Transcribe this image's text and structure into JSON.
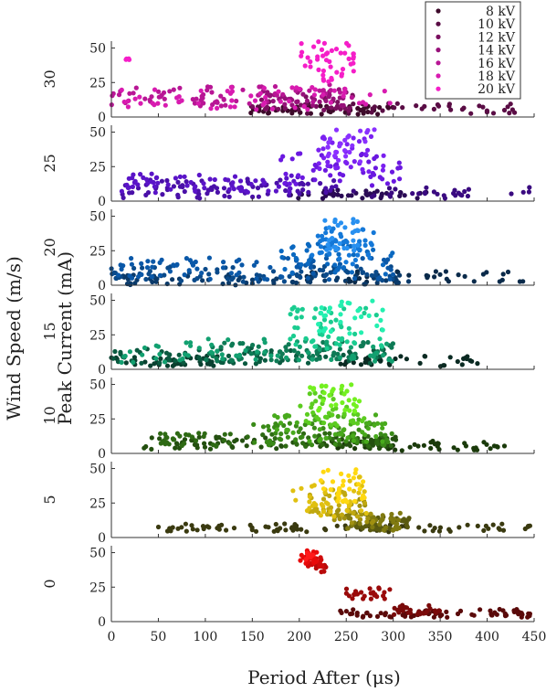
{
  "chart_data": {
    "type": "scatter",
    "xlabel": "Period After (μs)",
    "ylabel_outer": "Wind Speed (m/s)",
    "ylabel_inner": "Peak Current (mA)",
    "xlim": [
      0,
      450
    ],
    "ylim": [
      0,
      55
    ],
    "x_ticks": [
      "0",
      "50",
      "100",
      "150",
      "200",
      "250",
      "300",
      "350",
      "400",
      "450"
    ],
    "y_ticks": [
      "0",
      "25",
      "50"
    ],
    "legend_position": "top-right",
    "legend": [
      {
        "label": "8 kV"
      },
      {
        "label": "10 kV"
      },
      {
        "label": "12 kV"
      },
      {
        "label": "14 kV"
      },
      {
        "label": "16 kV"
      },
      {
        "label": "18 kV"
      },
      {
        "label": "20 kV"
      }
    ],
    "panels": [
      {
        "wind_speed": "30",
        "colors": [
          "#3d0a2a",
          "#5a0d45",
          "#7a0f5f",
          "#97117a",
          "#b81695",
          "#d81bb0",
          "#f51ec8"
        ],
        "series": [
          {
            "name": "8 kV",
            "clusters": [
              {
                "x": [
                  140,
                  300
                ],
                "y": [
                  2,
                  8
                ],
                "n": 55
              }
            ]
          },
          {
            "name": "10 kV",
            "clusters": [
              {
                "x": [
                  150,
                  440
                ],
                "y": [
                  2,
                  10
                ],
                "n": 40
              }
            ]
          },
          {
            "name": "12 kV",
            "clusters": [
              {
                "x": [
                  150,
                  260
                ],
                "y": [
                  4,
                  16
                ],
                "n": 35
              }
            ]
          },
          {
            "name": "14 kV",
            "clusters": [
              {
                "x": [
                  160,
                  250
                ],
                "y": [
                  8,
                  20
                ],
                "n": 40
              }
            ]
          },
          {
            "name": "16 kV",
            "clusters": [
              {
                "x": [
                  0,
                  120
                ],
                "y": [
                  8,
                  22
                ],
                "n": 45
              },
              {
                "x": [
                  100,
                  260
                ],
                "y": [
                  8,
                  24
                ],
                "n": 30
              }
            ]
          },
          {
            "name": "18 kV",
            "clusters": [
              {
                "x": [
                  0,
                  300
                ],
                "y": [
                  5,
                  22
                ],
                "n": 60
              }
            ]
          },
          {
            "name": "20 kV",
            "clusters": [
              {
                "x": [
                  200,
                  260
                ],
                "y": [
                  25,
                  55
                ],
                "n": 45
              },
              {
                "x": [
                  15,
                  20
                ],
                "y": [
                  39,
                  43
                ],
                "n": 4
              }
            ]
          }
        ]
      },
      {
        "wind_speed": "25",
        "colors": [
          "#2a0a55",
          "#3a0a80",
          "#4a10a8",
          "#5a14c8",
          "#6a18e0",
          "#7a20f0",
          "#8a30ff"
        ],
        "series": [
          {
            "name": "8 kV",
            "clusters": [
              {
                "x": [
                  190,
                  340
                ],
                "y": [
                  2,
                  8
                ],
                "n": 40
              }
            ]
          },
          {
            "name": "10 kV",
            "clusters": [
              {
                "x": [
                  250,
                  445
                ],
                "y": [
                  2,
                  10
                ],
                "n": 30
              }
            ]
          },
          {
            "name": "12 kV",
            "clusters": [
              {
                "x": [
                  10,
                  240
                ],
                "y": [
                  2,
                  16
                ],
                "n": 80
              }
            ]
          },
          {
            "name": "14 kV",
            "clusters": [
              {
                "x": [
                  10,
                  200
                ],
                "y": [
                  6,
                  20
                ],
                "n": 70
              }
            ]
          },
          {
            "name": "16 kV",
            "clusters": [
              {
                "x": [
                  180,
                  310
                ],
                "y": [
                  10,
                  35
                ],
                "n": 45
              }
            ]
          },
          {
            "name": "18 kV",
            "clusters": [
              {
                "x": [
                  220,
                  290
                ],
                "y": [
                  20,
                  48
                ],
                "n": 35
              }
            ]
          },
          {
            "name": "20 kV",
            "clusters": [
              {
                "x": [
                  230,
                  280
                ],
                "y": [
                  28,
                  52
                ],
                "n": 25
              }
            ]
          }
        ]
      },
      {
        "wind_speed": "20",
        "colors": [
          "#0a2a4a",
          "#0a3a6a",
          "#0a4a8a",
          "#0a58a8",
          "#0a68c0",
          "#1478d8",
          "#2890f0"
        ],
        "series": [
          {
            "name": "8 kV",
            "clusters": [
              {
                "x": [
                  200,
                  440
                ],
                "y": [
                  2,
                  10
                ],
                "n": 45
              }
            ]
          },
          {
            "name": "10 kV",
            "clusters": [
              {
                "x": [
                  0,
                  320
                ],
                "y": [
                  0,
                  8
                ],
                "n": 70
              }
            ]
          },
          {
            "name": "12 kV",
            "clusters": [
              {
                "x": [
                  0,
                  300
                ],
                "y": [
                  2,
                  14
                ],
                "n": 70
              }
            ]
          },
          {
            "name": "14 kV",
            "clusters": [
              {
                "x": [
                  0,
                  300
                ],
                "y": [
                  4,
                  20
                ],
                "n": 80
              }
            ]
          },
          {
            "name": "16 kV",
            "clusters": [
              {
                "x": [
                  180,
                  300
                ],
                "y": [
                  8,
                  30
                ],
                "n": 50
              }
            ]
          },
          {
            "name": "18 kV",
            "clusters": [
              {
                "x": [
                  210,
                  280
                ],
                "y": [
                  15,
                  42
                ],
                "n": 45
              }
            ]
          },
          {
            "name": "20 kV",
            "clusters": [
              {
                "x": [
                  225,
                  265
                ],
                "y": [
                  25,
                  48
                ],
                "n": 30
              }
            ]
          }
        ]
      },
      {
        "wind_speed": "15",
        "colors": [
          "#0a2a22",
          "#0a4030",
          "#0a5a40",
          "#0e7a55",
          "#12a070",
          "#1acc90",
          "#24f0b0"
        ],
        "series": [
          {
            "name": "8 kV",
            "clusters": [
              {
                "x": [
                  230,
                  390
                ],
                "y": [
                  2,
                  10
                ],
                "n": 40
              }
            ]
          },
          {
            "name": "10 kV",
            "clusters": [
              {
                "x": [
                  0,
                  120
                ],
                "y": [
                  2,
                  10
                ],
                "n": 45
              }
            ]
          },
          {
            "name": "12 kV",
            "clusters": [
              {
                "x": [
                  0,
                  300
                ],
                "y": [
                  4,
                  16
                ],
                "n": 70
              }
            ]
          },
          {
            "name": "14 kV",
            "clusters": [
              {
                "x": [
                  100,
                  300
                ],
                "y": [
                  6,
                  20
                ],
                "n": 80
              }
            ]
          },
          {
            "name": "16 kV",
            "clusters": [
              {
                "x": [
                  0,
                  300
                ],
                "y": [
                  5,
                  22
                ],
                "n": 70
              }
            ]
          },
          {
            "name": "18 kV",
            "clusters": [
              {
                "x": [
                  190,
                  290
                ],
                "y": [
                  15,
                  45
                ],
                "n": 55
              }
            ]
          },
          {
            "name": "20 kV",
            "clusters": [
              {
                "x": [
                  220,
                  290
                ],
                "y": [
                  25,
                  50
                ],
                "n": 30
              }
            ]
          }
        ]
      },
      {
        "wind_speed": "10",
        "colors": [
          "#1a3a0a",
          "#245010",
          "#2e6a14",
          "#3a8a18",
          "#48aa1c",
          "#5ccc20",
          "#74f020"
        ],
        "series": [
          {
            "name": "8 kV",
            "clusters": [
              {
                "x": [
                  240,
                  420
                ],
                "y": [
                  2,
                  9
                ],
                "n": 50
              }
            ]
          },
          {
            "name": "10 kV",
            "clusters": [
              {
                "x": [
                  10,
                  310
                ],
                "y": [
                  3,
                  12
                ],
                "n": 90
              }
            ]
          },
          {
            "name": "12 kV",
            "clusters": [
              {
                "x": [
                  50,
                  300
                ],
                "y": [
                  5,
                  15
                ],
                "n": 70
              }
            ]
          },
          {
            "name": "14 kV",
            "clusters": [
              {
                "x": [
                  150,
                  300
                ],
                "y": [
                  6,
                  22
                ],
                "n": 60
              }
            ]
          },
          {
            "name": "16 kV",
            "clusters": [
              {
                "x": [
                  170,
                  300
                ],
                "y": [
                  8,
                  28
                ],
                "n": 50
              }
            ]
          },
          {
            "name": "18 kV",
            "clusters": [
              {
                "x": [
                  200,
                  270
                ],
                "y": [
                  20,
                  45
                ],
                "n": 40
              }
            ]
          },
          {
            "name": "20 kV",
            "clusters": [
              {
                "x": [
                  210,
                  265
                ],
                "y": [
                  30,
                  50
                ],
                "n": 30
              }
            ]
          }
        ]
      },
      {
        "wind_speed": "5",
        "colors": [
          "#3a3a10",
          "#5a5a10",
          "#807a10",
          "#a09010",
          "#c0a810",
          "#e0c010",
          "#ffd810"
        ],
        "series": [
          {
            "name": "8 kV",
            "clusters": [
              {
                "x": [
                  50,
                  450
                ],
                "y": [
                  4,
                  10
                ],
                "n": 90
              }
            ]
          },
          {
            "name": "10 kV",
            "clusters": [
              {
                "x": [
                  260,
                  320
                ],
                "y": [
                  5,
                  16
                ],
                "n": 50
              }
            ]
          },
          {
            "name": "12 kV",
            "clusters": [
              {
                "x": [
                  250,
                  310
                ],
                "y": [
                  5,
                  18
                ],
                "n": 35
              }
            ]
          },
          {
            "name": "14 kV",
            "clusters": [
              {
                "x": [
                  230,
                  280
                ],
                "y": [
                  10,
                  28
                ],
                "n": 30
              }
            ]
          },
          {
            "name": "16 kV",
            "clusters": [
              {
                "x": [
                  210,
                  270
                ],
                "y": [
                  15,
                  35
                ],
                "n": 30
              }
            ]
          },
          {
            "name": "18 kV",
            "clusters": [
              {
                "x": [
                  190,
                  280
                ],
                "y": [
                  15,
                  45
                ],
                "n": 40
              }
            ]
          },
          {
            "name": "20 kV",
            "clusters": [
              {
                "x": [
                  220,
                  270
                ],
                "y": [
                  25,
                  50
                ],
                "n": 30
              }
            ]
          }
        ]
      },
      {
        "wind_speed": "0",
        "colors": [
          "#5a0a0a",
          "#7a0a0a",
          "#9a0a0a",
          "#b80a0a",
          "#d00a0a",
          "#e80a0a",
          "#ff1a1a"
        ],
        "series": [
          {
            "name": "8 kV",
            "clusters": [
              {
                "x": [
                  240,
                  450
                ],
                "y": [
                  3,
                  9
                ],
                "n": 70
              }
            ]
          },
          {
            "name": "10 kV",
            "clusters": [
              {
                "x": [
                  300,
                  350
                ],
                "y": [
                  5,
                  12
                ],
                "n": 30
              }
            ]
          },
          {
            "name": "12 kV",
            "clusters": [
              {
                "x": [
                  250,
                  300
                ],
                "y": [
                  16,
                  25
                ],
                "n": 25
              }
            ]
          },
          {
            "name": "14 kV",
            "clusters": [
              {
                "x": [
                  215,
                  230
                ],
                "y": [
                  36,
                  42
                ],
                "n": 10
              }
            ]
          },
          {
            "name": "16 kV",
            "clusters": [
              {
                "x": [
                  205,
                  225
                ],
                "y": [
                  38,
                  48
                ],
                "n": 20
              }
            ]
          },
          {
            "name": "18 kV",
            "clusters": [
              {
                "x": [
                  200,
                  220
                ],
                "y": [
                  42,
                  52
                ],
                "n": 20
              }
            ]
          },
          {
            "name": "20 kV",
            "clusters": [
              {
                "x": [
                  205,
                  215
                ],
                "y": [
                  45,
                  50
                ],
                "n": 8
              }
            ]
          }
        ]
      }
    ]
  }
}
